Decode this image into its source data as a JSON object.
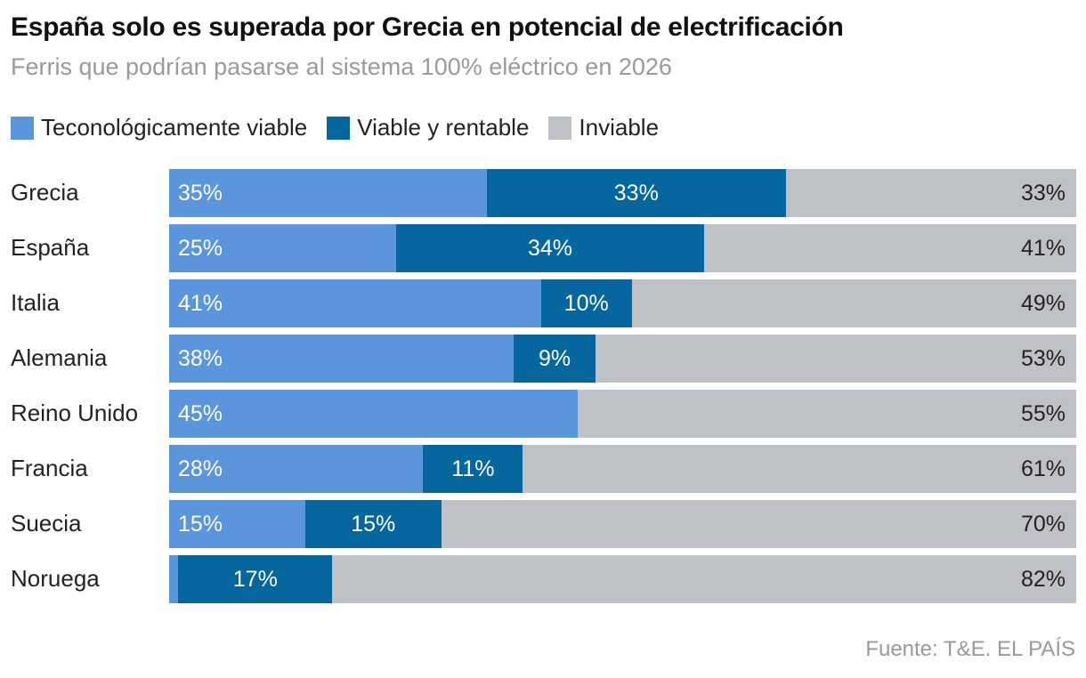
{
  "chart_data": {
    "type": "bar",
    "orientation": "horizontal",
    "stacked": true,
    "title": "España solo es superada por Grecia en potencial de electrificación",
    "subtitle": "Ferris que podrían pasarse al sistema 100% eléctrico en 2026",
    "categories": [
      "Grecia",
      "España",
      "Italia",
      "Alemania",
      "Reino Unido",
      "Francia",
      "Suecia",
      "Noruega"
    ],
    "series": [
      {
        "name": "Teconológicamente viable",
        "color": "#5b95db",
        "values": [
          35,
          25,
          41,
          38,
          45,
          28,
          15,
          1
        ],
        "labels": [
          "35%",
          "25%",
          "41%",
          "38%",
          "45%",
          "28%",
          "15%",
          ""
        ]
      },
      {
        "name": "Viable y rentable",
        "color": "#05679d",
        "values": [
          33,
          34,
          10,
          9,
          0,
          11,
          15,
          17
        ],
        "labels": [
          "33%",
          "34%",
          "10%",
          "9%",
          "",
          "11%",
          "15%",
          "17%"
        ]
      },
      {
        "name": "Inviable",
        "color": "#bec2c6",
        "values": [
          33,
          41,
          49,
          53,
          55,
          61,
          70,
          82
        ],
        "labels": [
          "33%",
          "41%",
          "49%",
          "53%",
          "55%",
          "61%",
          "70%",
          "82%"
        ]
      }
    ],
    "xlim": [
      0,
      100
    ],
    "legend_position": "top-left",
    "source": "Fuente: T&E. EL PAÍS"
  }
}
